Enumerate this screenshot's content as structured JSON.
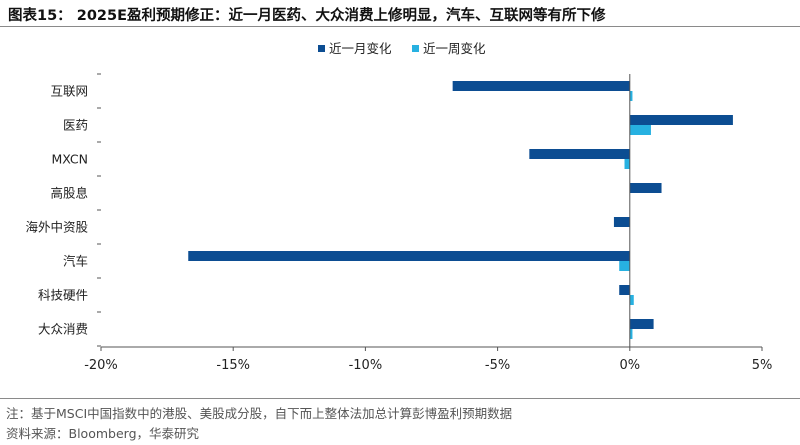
{
  "header": {
    "title": "图表15： 2025E盈利预期修正：近一月医药、大众消费上修明显，汽车、互联网等有所下修"
  },
  "footer": {
    "note": "注：基于MSCI中国指数中的港股、美股成分股，自下而上整体法加总计算彭博盈利预期数据",
    "source": "资料来源：Bloomberg，华泰研究"
  },
  "colors": {
    "month": "#0c4d92",
    "week": "#27b1e1"
  },
  "chart_data": {
    "type": "bar",
    "orientation": "horizontal",
    "categories": [
      "互联网",
      "医药",
      "MXCN",
      "高股息",
      "海外中资股",
      "汽车",
      "科技硬件",
      "大众消费"
    ],
    "series": [
      {
        "name": "近一月变化",
        "values": [
          -6.7,
          3.9,
          -3.8,
          1.2,
          -0.6,
          -16.7,
          -0.4,
          0.9
        ]
      },
      {
        "name": "近一周变化",
        "values": [
          0.1,
          0.8,
          -0.2,
          0.0,
          0.0,
          -0.4,
          0.15,
          0.1
        ]
      }
    ],
    "xlim": [
      -20,
      5
    ],
    "xticks": [
      -20,
      -15,
      -10,
      -5,
      0,
      5
    ],
    "xtick_labels": [
      "-20%",
      "-15%",
      "-10%",
      "-5%",
      "0%",
      "5%"
    ],
    "legend_position": "top-center",
    "grid": false
  }
}
